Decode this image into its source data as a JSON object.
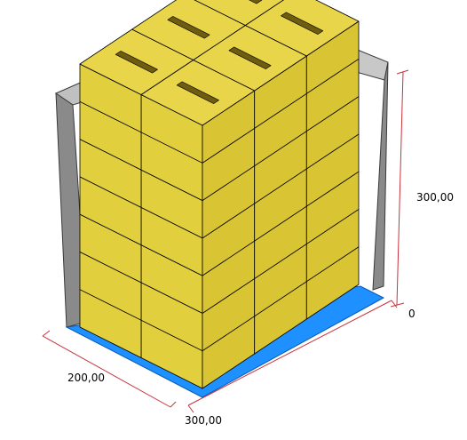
{
  "dimensions": {
    "width_label": "200,00",
    "length_label": "300,00",
    "height_label": "300,00",
    "origin_label": "0"
  },
  "colors": {
    "background": "#ffffff",
    "wall_face": "#c0c0c0",
    "wall_shadow": "#8a8a8a",
    "pallet": "#1e90ff",
    "box_top": "#e8d54a",
    "box_front": "#e2cf3e",
    "box_side": "#d9c433",
    "box_edge": "#000000",
    "dimension_line": "#c8323c"
  },
  "stack": {
    "columns_front": 3,
    "rows_side": 2,
    "layers": 7
  }
}
